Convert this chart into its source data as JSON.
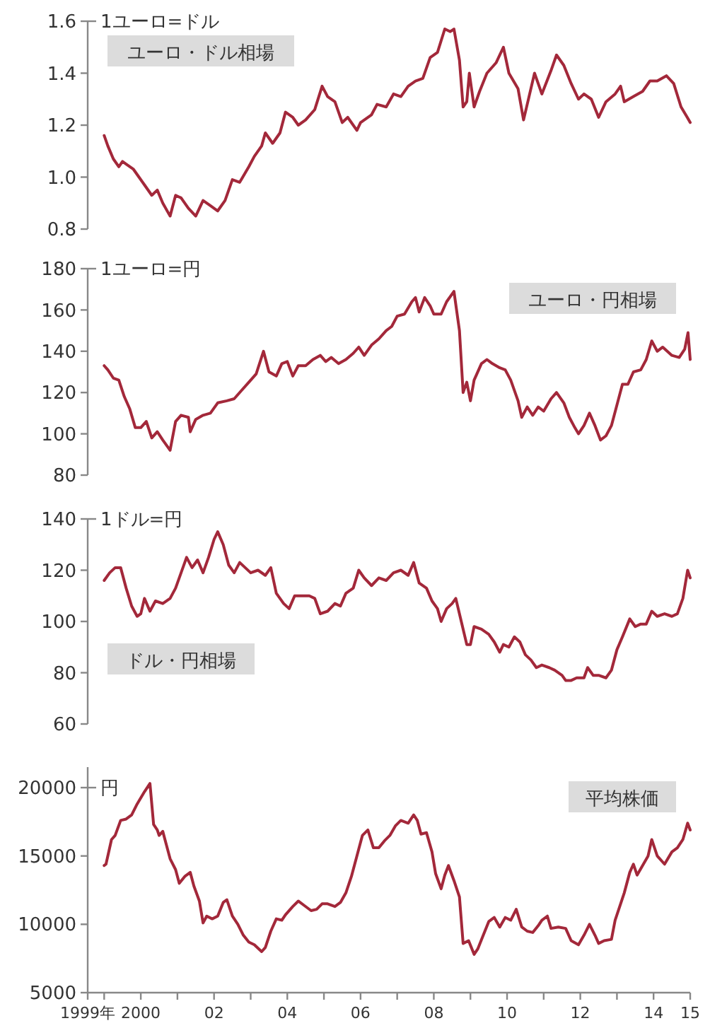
{
  "chart_data": [
    {
      "type": "line",
      "title": "ユーロ・ドル相場",
      "ylabel": "1ユーロ=ドル",
      "color": "#a3283a",
      "xlim": [
        1998.55,
        2015
      ],
      "ylim": [
        0.8,
        1.6
      ],
      "yticks": [
        {
          "value": 0.8,
          "label": "0.8"
        },
        {
          "value": 1.0,
          "label": "1.0"
        },
        {
          "value": 1.2,
          "label": "1.2"
        },
        {
          "value": 1.4,
          "label": "1.4"
        },
        {
          "value": 1.6,
          "label": "1.6"
        }
      ],
      "tick_labels": "y",
      "x": [
        1999.0,
        1999.1,
        1999.25,
        1999.4,
        1999.5,
        1999.6,
        1999.8,
        1999.95,
        2000.1,
        2000.3,
        2000.45,
        2000.6,
        2000.8,
        2000.95,
        2001.1,
        2001.3,
        2001.5,
        2001.7,
        2001.9,
        2002.1,
        2002.3,
        2002.5,
        2002.7,
        2002.95,
        2003.1,
        2003.3,
        2003.4,
        2003.6,
        2003.8,
        2003.95,
        2004.15,
        2004.3,
        2004.5,
        2004.75,
        2004.95,
        2005.1,
        2005.3,
        2005.5,
        2005.65,
        2005.9,
        2006.0,
        2006.3,
        2006.45,
        2006.7,
        2006.9,
        2007.1,
        2007.3,
        2007.5,
        2007.7,
        2007.9,
        2008.1,
        2008.3,
        2008.45,
        2008.55,
        2008.7,
        2008.8,
        2008.9,
        2008.97,
        2009.1,
        2009.25,
        2009.45,
        2009.7,
        2009.9,
        2010.05,
        2010.3,
        2010.45,
        2010.55,
        2010.75,
        2010.85,
        2010.95,
        2011.2,
        2011.35,
        2011.55,
        2011.75,
        2011.95,
        2012.1,
        2012.3,
        2012.5,
        2012.7,
        2012.95,
        2013.1,
        2013.2,
        2013.45,
        2013.7,
        2013.9,
        2014.1,
        2014.35,
        2014.55,
        2014.75,
        2014.92,
        2015.0
      ],
      "values": [
        1.16,
        1.12,
        1.07,
        1.04,
        1.06,
        1.05,
        1.03,
        1.0,
        0.97,
        0.93,
        0.95,
        0.9,
        0.85,
        0.93,
        0.92,
        0.88,
        0.85,
        0.91,
        0.89,
        0.87,
        0.91,
        0.99,
        0.98,
        1.04,
        1.08,
        1.12,
        1.17,
        1.13,
        1.17,
        1.25,
        1.23,
        1.2,
        1.22,
        1.26,
        1.35,
        1.31,
        1.29,
        1.21,
        1.23,
        1.18,
        1.21,
        1.24,
        1.28,
        1.27,
        1.32,
        1.31,
        1.35,
        1.37,
        1.38,
        1.46,
        1.48,
        1.57,
        1.56,
        1.57,
        1.45,
        1.27,
        1.29,
        1.4,
        1.27,
        1.33,
        1.4,
        1.44,
        1.5,
        1.4,
        1.34,
        1.22,
        1.28,
        1.4,
        1.36,
        1.32,
        1.41,
        1.47,
        1.43,
        1.36,
        1.3,
        1.32,
        1.3,
        1.23,
        1.29,
        1.32,
        1.35,
        1.29,
        1.31,
        1.33,
        1.37,
        1.37,
        1.39,
        1.36,
        1.27,
        1.23,
        1.21
      ]
    },
    {
      "type": "line",
      "title": "ユーロ・円相場",
      "ylabel": "1ユーロ=円",
      "color": "#a3283a",
      "xlim": [
        1998.55,
        2015
      ],
      "ylim": [
        80,
        180
      ],
      "yticks": [
        80,
        100,
        120,
        140,
        160,
        180
      ],
      "tick_labels": "y",
      "x": [
        1999.0,
        1999.1,
        1999.25,
        1999.4,
        1999.55,
        1999.7,
        1999.85,
        2000.0,
        2000.15,
        2000.3,
        2000.45,
        2000.6,
        2000.8,
        2000.95,
        2001.1,
        2001.3,
        2001.35,
        2001.5,
        2001.7,
        2001.9,
        2002.1,
        2002.35,
        2002.55,
        2002.75,
        2002.95,
        2003.15,
        2003.35,
        2003.5,
        2003.7,
        2003.85,
        2004.0,
        2004.15,
        2004.3,
        2004.5,
        2004.7,
        2004.9,
        2005.05,
        2005.2,
        2005.4,
        2005.6,
        2005.8,
        2005.95,
        2006.1,
        2006.3,
        2006.5,
        2006.7,
        2006.85,
        2007.0,
        2007.2,
        2007.4,
        2007.5,
        2007.6,
        2007.75,
        2007.9,
        2008.0,
        2008.2,
        2008.35,
        2008.55,
        2008.7,
        2008.8,
        2008.9,
        2009.0,
        2009.1,
        2009.3,
        2009.45,
        2009.6,
        2009.8,
        2009.95,
        2010.1,
        2010.3,
        2010.4,
        2010.55,
        2010.7,
        2010.85,
        2011.0,
        2011.2,
        2011.35,
        2011.55,
        2011.7,
        2011.85,
        2011.95,
        2012.1,
        2012.25,
        2012.4,
        2012.55,
        2012.7,
        2012.85,
        2013.0,
        2013.15,
        2013.3,
        2013.45,
        2013.65,
        2013.8,
        2013.95,
        2014.1,
        2014.25,
        2014.5,
        2014.7,
        2014.85,
        2014.94,
        2015.0
      ],
      "values": [
        133,
        131,
        127,
        126,
        118,
        112,
        103,
        103,
        106,
        98,
        101,
        97,
        92,
        106,
        109,
        108,
        101,
        107,
        109,
        110,
        115,
        116,
        117,
        121,
        125,
        129,
        140,
        130,
        128,
        134,
        135,
        128,
        133,
        133,
        136,
        138,
        135,
        137,
        134,
        136,
        139,
        142,
        138,
        143,
        146,
        150,
        152,
        157,
        158,
        164,
        166,
        159,
        166,
        162,
        158,
        158,
        164,
        169,
        150,
        120,
        125,
        116,
        126,
        134,
        136,
        134,
        132,
        131,
        126,
        116,
        108,
        113,
        109,
        113,
        111,
        117,
        120,
        115,
        108,
        103,
        100,
        104,
        110,
        104,
        97,
        99,
        104,
        114,
        124,
        124,
        130,
        131,
        136,
        145,
        140,
        142,
        138,
        137,
        141,
        149,
        136
      ]
    },
    {
      "type": "line",
      "title": "ドル・円相場",
      "ylabel": "1ドル=円",
      "color": "#a3283a",
      "xlim": [
        1998.55,
        2015
      ],
      "ylim": [
        60,
        140
      ],
      "yticks": [
        60,
        80,
        100,
        120,
        140
      ],
      "tick_labels": "y",
      "x": [
        1999.0,
        1999.15,
        1999.3,
        1999.45,
        1999.6,
        1999.75,
        1999.9,
        2000.0,
        2000.1,
        2000.25,
        2000.4,
        2000.6,
        2000.8,
        2000.95,
        2001.1,
        2001.25,
        2001.4,
        2001.55,
        2001.7,
        2001.85,
        2002.0,
        2002.1,
        2002.25,
        2002.4,
        2002.55,
        2002.7,
        2002.85,
        2003.0,
        2003.2,
        2003.4,
        2003.55,
        2003.7,
        2003.9,
        2004.05,
        2004.2,
        2004.4,
        2004.6,
        2004.75,
        2004.9,
        2005.1,
        2005.3,
        2005.45,
        2005.6,
        2005.8,
        2005.95,
        2006.1,
        2006.3,
        2006.5,
        2006.7,
        2006.9,
        2007.1,
        2007.3,
        2007.45,
        2007.6,
        2007.8,
        2007.95,
        2008.1,
        2008.2,
        2008.35,
        2008.5,
        2008.6,
        2008.75,
        2008.9,
        2009.0,
        2009.1,
        2009.3,
        2009.5,
        2009.65,
        2009.8,
        2009.9,
        2010.05,
        2010.2,
        2010.35,
        2010.5,
        2010.65,
        2010.8,
        2010.95,
        2011.15,
        2011.3,
        2011.5,
        2011.6,
        2011.75,
        2011.9,
        2012.1,
        2012.2,
        2012.35,
        2012.5,
        2012.7,
        2012.85,
        2013.0,
        2013.15,
        2013.35,
        2013.5,
        2013.65,
        2013.8,
        2013.95,
        2014.1,
        2014.3,
        2014.5,
        2014.65,
        2014.8,
        2014.93,
        2015.0
      ],
      "values": [
        116,
        119,
        121,
        121,
        113,
        106,
        102,
        103,
        109,
        104,
        108,
        107,
        109,
        113,
        119,
        125,
        121,
        124,
        119,
        125,
        132,
        135,
        130,
        122,
        119,
        123,
        121,
        119,
        120,
        118,
        121,
        111,
        107,
        105,
        110,
        110,
        110,
        109,
        103,
        104,
        107,
        106,
        111,
        113,
        120,
        117,
        114,
        117,
        116,
        119,
        120,
        118,
        123,
        115,
        113,
        108,
        105,
        100,
        105,
        107,
        109,
        100,
        91,
        91,
        98,
        97,
        95,
        92,
        88,
        91,
        90,
        94,
        92,
        87,
        85,
        82,
        83,
        82,
        81,
        79,
        77,
        77,
        78,
        78,
        82,
        79,
        79,
        78,
        81,
        89,
        94,
        101,
        98,
        99,
        99,
        104,
        102,
        103,
        102,
        103,
        109,
        120,
        117
      ]
    },
    {
      "type": "line",
      "title": "平均株価",
      "ylabel": "円",
      "color": "#a3283a",
      "xlim": [
        1998.55,
        2015
      ],
      "ylim": [
        5000,
        21500
      ],
      "yticks": [
        5000,
        10000,
        15000,
        20000
      ],
      "xticks": [
        {
          "value": 1998.55,
          "label": "1999年"
        },
        {
          "value": 1999,
          "label": null
        },
        2000,
        {
          "value": 2001,
          "label": null
        },
        {
          "value": 2002,
          "label": "02"
        },
        {
          "value": 2003,
          "label": null
        },
        {
          "value": 2004,
          "label": "04"
        },
        {
          "value": 2005,
          "label": null
        },
        {
          "value": 2006,
          "label": "06"
        },
        {
          "value": 2007,
          "label": null
        },
        {
          "value": 2008,
          "label": "08"
        },
        {
          "value": 2009,
          "label": null
        },
        {
          "value": 2010,
          "label": "10"
        },
        {
          "value": 2011,
          "label": null
        },
        {
          "value": 2012,
          "label": "12"
        },
        {
          "value": 2013,
          "label": null
        },
        {
          "value": 2014,
          "label": "14"
        },
        {
          "value": 2015,
          "label": "15"
        }
      ],
      "x": [
        1999.0,
        1999.05,
        1999.2,
        1999.3,
        1999.45,
        1999.6,
        1999.75,
        1999.9,
        2000.1,
        2000.25,
        2000.35,
        2000.45,
        2000.5,
        2000.6,
        2000.7,
        2000.8,
        2000.95,
        2001.05,
        2001.2,
        2001.35,
        2001.45,
        2001.6,
        2001.7,
        2001.8,
        2001.95,
        2002.1,
        2002.25,
        2002.35,
        2002.5,
        2002.65,
        2002.8,
        2002.95,
        2003.1,
        2003.3,
        2003.4,
        2003.55,
        2003.7,
        2003.85,
        2003.95,
        2004.15,
        2004.3,
        2004.45,
        2004.65,
        2004.8,
        2004.95,
        2005.1,
        2005.3,
        2005.45,
        2005.6,
        2005.75,
        2005.9,
        2006.05,
        2006.2,
        2006.35,
        2006.5,
        2006.65,
        2006.8,
        2006.95,
        2007.1,
        2007.3,
        2007.45,
        2007.55,
        2007.65,
        2007.8,
        2007.95,
        2008.05,
        2008.2,
        2008.3,
        2008.4,
        2008.55,
        2008.7,
        2008.8,
        2008.95,
        2009.1,
        2009.2,
        2009.35,
        2009.5,
        2009.65,
        2009.8,
        2009.95,
        2010.1,
        2010.25,
        2010.4,
        2010.55,
        2010.7,
        2010.85,
        2010.95,
        2011.1,
        2011.2,
        2011.4,
        2011.6,
        2011.75,
        2011.95,
        2012.1,
        2012.25,
        2012.4,
        2012.5,
        2012.65,
        2012.85,
        2012.95,
        2013.1,
        2013.2,
        2013.35,
        2013.45,
        2013.55,
        2013.7,
        2013.85,
        2013.95,
        2014.1,
        2014.3,
        2014.5,
        2014.65,
        2014.8,
        2014.93,
        2015.0
      ],
      "values": [
        14300,
        14400,
        16200,
        16500,
        17600,
        17700,
        18000,
        18800,
        19700,
        20300,
        17300,
        16900,
        16500,
        16800,
        15800,
        14800,
        14000,
        13000,
        13500,
        13800,
        12800,
        11700,
        10100,
        10600,
        10400,
        10600,
        11600,
        11800,
        10600,
        10000,
        9200,
        8700,
        8500,
        8000,
        8300,
        9500,
        10400,
        10300,
        10700,
        11300,
        11700,
        11400,
        11000,
        11100,
        11500,
        11500,
        11300,
        11600,
        12300,
        13500,
        15000,
        16500,
        16900,
        15600,
        15600,
        16100,
        16500,
        17200,
        17600,
        17400,
        18000,
        17600,
        16600,
        16700,
        15300,
        13700,
        12600,
        13600,
        14300,
        13200,
        12000,
        8600,
        8800,
        7800,
        8200,
        9200,
        10200,
        10500,
        9800,
        10500,
        10300,
        11100,
        9800,
        9500,
        9400,
        9900,
        10300,
        10600,
        9700,
        9800,
        9700,
        8800,
        8500,
        9200,
        10000,
        9200,
        8600,
        8800,
        8900,
        10300,
        11500,
        12300,
        13800,
        14400,
        13600,
        14300,
        15000,
        16200,
        15000,
        14400,
        15300,
        15600,
        16200,
        17400,
        16900
      ]
    }
  ]
}
